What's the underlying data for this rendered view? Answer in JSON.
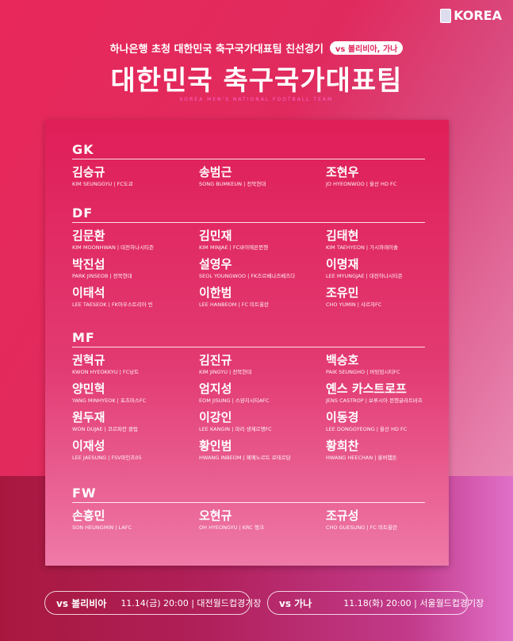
{
  "brand": "KOREA",
  "subtitle": "하나은행 초청 대한민국 축구국가대표팀 친선경기",
  "opponents_badge": "vs 볼리비아, 가나",
  "title": "대한민국 축구국가대표팀",
  "title_en": "KOREA MEN'S NATIONAL FOOTBALL TEAM",
  "sections": [
    {
      "pos": "GK",
      "players": [
        {
          "ko": "김승규",
          "en": "KIM SEUNGGYU | FC도쿄"
        },
        {
          "ko": "송범근",
          "en": "SONG BUMKEUN | 전북현대"
        },
        {
          "ko": "조현우",
          "en": "JO HYEONWOO | 울산 HD FC"
        }
      ]
    },
    {
      "pos": "DF",
      "players": [
        {
          "ko": "김문환",
          "en": "KIM MOONHWAN | 대전하나시티즌"
        },
        {
          "ko": "김민재",
          "en": "KIM MINJAE | FC바이에른뮌헨"
        },
        {
          "ko": "김태현",
          "en": "KIM TAEHYEON | 가시와레이솔"
        },
        {
          "ko": "박진섭",
          "en": "PARK JINSEOB | 전북현대"
        },
        {
          "ko": "설영우",
          "en": "SEOL YOUNGWOO | FK즈르베나즈베즈다"
        },
        {
          "ko": "이명재",
          "en": "LEE MYUNGJAE | 대전하나시티즌"
        },
        {
          "ko": "이태석",
          "en": "LEE TAESEOK | FK아우스트리아 빈"
        },
        {
          "ko": "이한범",
          "en": "LEE HANBEOM | FC 미트윌란"
        },
        {
          "ko": "조유민",
          "en": "CHO YUMIN | 샤르자FC"
        }
      ]
    },
    {
      "pos": "MF",
      "players": [
        {
          "ko": "권혁규",
          "en": "KWON HYEOKKYU | FC낭트"
        },
        {
          "ko": "김진규",
          "en": "KIM JINGYU | 전북현대"
        },
        {
          "ko": "백승호",
          "en": "PAIK SEUNGHO | 버밍엄시티FC"
        },
        {
          "ko": "양민혁",
          "en": "YANG MINHYEOK | 포츠머스FC"
        },
        {
          "ko": "엄지성",
          "en": "EOM JISUNG | 스완지시티AFC"
        },
        {
          "ko": "옌스 카스트로프",
          "en": "JENS CASTROP | 보루시아 묀헨글라트바흐"
        },
        {
          "ko": "원두재",
          "en": "WON DUJAE | 코르파칸 클럽"
        },
        {
          "ko": "이강인",
          "en": "LEE KANGIN | 파리 생제르맹FC"
        },
        {
          "ko": "이동경",
          "en": "LEE DONGGYEONG | 울산 HD FC"
        },
        {
          "ko": "이재성",
          "en": "LEE JAESUNG | FSV마인츠05"
        },
        {
          "ko": "황인범",
          "en": "HWANG INBEOM | 페예노르트 로테르담"
        },
        {
          "ko": "황희찬",
          "en": "HWANG HEECHAN | 울버햄튼"
        }
      ]
    },
    {
      "pos": "FW",
      "players": [
        {
          "ko": "손흥민",
          "en": "SON HEUNGMIN | LAFC"
        },
        {
          "ko": "오현규",
          "en": "OH HYEONGYU | KRC 헹크"
        },
        {
          "ko": "조규성",
          "en": "CHO GUESUNG | FC 미트윌란"
        }
      ]
    }
  ],
  "matches": [
    {
      "vs": "vs 볼리비아",
      "info": "11.14(금) 20:00 | 대전월드컵경기장"
    },
    {
      "vs": "vs 가나",
      "info": "11.18(화) 20:00 | 서울월드컵경기장"
    }
  ]
}
